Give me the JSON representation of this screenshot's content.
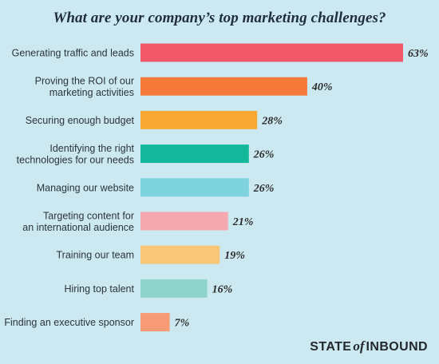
{
  "chart_data": {
    "type": "bar",
    "orientation": "horizontal",
    "title": "What are your company’s top marketing challenges?",
    "categories": [
      [
        "Generating traffic and leads"
      ],
      [
        "Proving the ROI of our",
        "marketing activities"
      ],
      [
        "Securing enough budget"
      ],
      [
        "Identifying the right",
        "technologies for our needs"
      ],
      [
        "Managing our website"
      ],
      [
        "Targeting content for",
        "an international audience"
      ],
      [
        "Training our team"
      ],
      [
        "Hiring top talent"
      ],
      [
        "Finding an executive sponsor"
      ]
    ],
    "values": [
      63,
      40,
      28,
      26,
      26,
      21,
      19,
      16,
      7
    ],
    "value_labels": [
      "63%",
      "40%",
      "28%",
      "26%",
      "26%",
      "21%",
      "19%",
      "16%",
      "7%"
    ],
    "colors": [
      "#f1596b",
      "#f57a3a",
      "#f9a933",
      "#13b89b",
      "#7ed3de",
      "#f6a8b1",
      "#f7c677",
      "#8fd3cb",
      "#f79b76"
    ],
    "xlim": [
      0,
      63
    ],
    "grid": false,
    "legend": "none"
  },
  "brand": {
    "part1": "STATE",
    "part2": "of",
    "part3": "INBOUND"
  }
}
